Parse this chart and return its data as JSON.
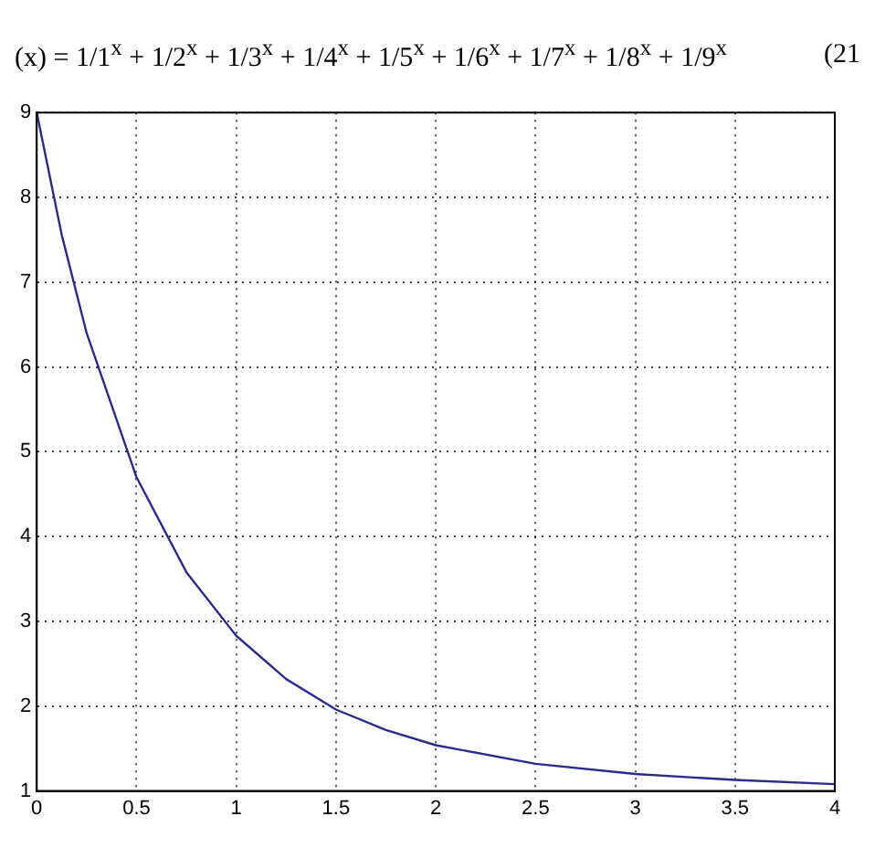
{
  "chart_data": {
    "type": "line",
    "title": "(x) = 1/1$^{x}$ + 1/2$^{x}$ + 1/3$^{x}$ + 1/4$^{x}$ + 1/5$^{x}$ + 1/6$^{x}$ + 1/7$^{x}$ + 1/8$^{x}$ + 1/9$^{x}$",
    "annotations": [
      "(21"
    ],
    "x": [
      0,
      0.125,
      0.25,
      0.5,
      0.75,
      1,
      1.25,
      1.5,
      1.75,
      2,
      2.5,
      3,
      3.5,
      4
    ],
    "series": [
      {
        "color": "#2b2b8c",
        "values": [
          9,
          7.56,
          6.4,
          4.7,
          3.58,
          2.83,
          2.32,
          1.96,
          1.72,
          1.54,
          1.32,
          1.2,
          1.13,
          1.08
        ]
      }
    ],
    "xlim": [
      0,
      4
    ],
    "xticks": [
      0,
      0.5,
      1,
      1.5,
      2,
      2.5,
      3,
      3.5,
      4
    ],
    "ylim": [
      1,
      9
    ],
    "yticks": [
      1,
      2,
      3,
      4,
      5,
      6,
      7,
      8,
      9
    ],
    "grid": true,
    "legend": false,
    "marker": "none",
    "line_style": "solid"
  }
}
